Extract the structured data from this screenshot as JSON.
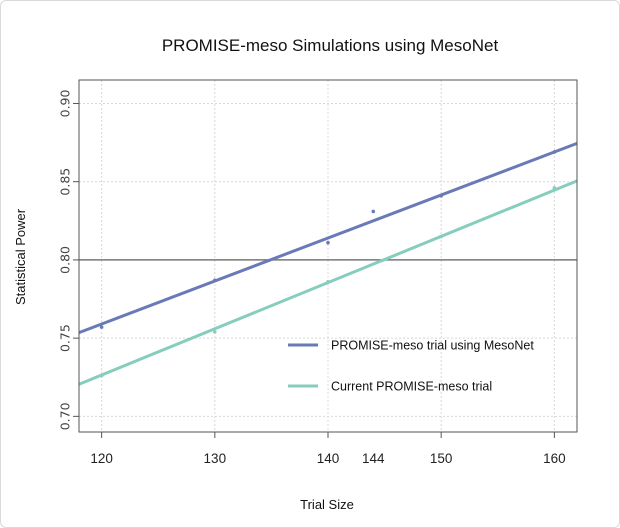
{
  "chart_data": {
    "type": "line",
    "title": "PROMISE-meso Simulations using MesoNet",
    "xlabel": "Trial Size",
    "ylabel": "Statistical Power",
    "xlim": [
      118,
      162
    ],
    "ylim": [
      0.69,
      0.915
    ],
    "x_ticks": [
      120,
      130,
      140,
      144,
      150,
      160
    ],
    "y_ticks": [
      0.7,
      0.75,
      0.8,
      0.85,
      0.9
    ],
    "y_tick_labels": [
      "0.70",
      "0.75",
      "0.80",
      "0.85",
      "0.90"
    ],
    "reference_line": 0.8,
    "grid": true,
    "legend_position": "bottom-right inside plot",
    "series": [
      {
        "name": "PROMISE-meso trial using MesoNet",
        "color": "#6a7ab7",
        "points": [
          [
            120,
            0.757
          ],
          [
            130,
            0.787
          ],
          [
            140,
            0.811
          ],
          [
            144,
            0.831
          ],
          [
            150,
            0.841
          ],
          [
            160,
            0.869
          ]
        ],
        "fit": [
          [
            118,
            0.7535
          ],
          [
            162,
            0.8745
          ]
        ]
      },
      {
        "name": "Current PROMISE-meso trial",
        "color": "#86cdbd",
        "points": [
          [
            120,
            0.726
          ],
          [
            130,
            0.754
          ],
          [
            140,
            0.786
          ],
          [
            150,
            0.815
          ],
          [
            160,
            0.846
          ]
        ],
        "fit": [
          [
            118,
            0.7205
          ],
          [
            162,
            0.8505
          ]
        ]
      }
    ]
  }
}
